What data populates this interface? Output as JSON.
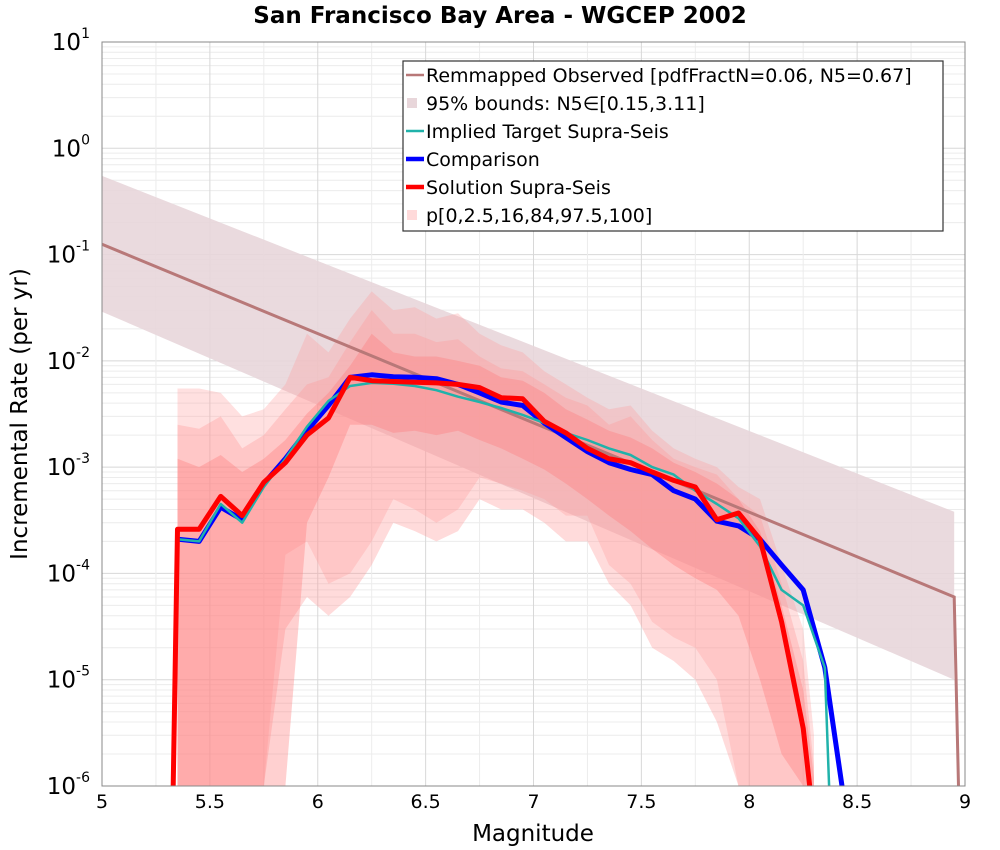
{
  "chart_data": {
    "type": "line",
    "title": "San Francisco Bay Area - WGCEP 2002",
    "xlabel": "Magnitude",
    "ylabel": "Incremental Rate (per yr)",
    "xlim": [
      5,
      9
    ],
    "ylim": [
      1e-06,
      10
    ],
    "yscale": "log",
    "grid": true,
    "legend_position": "top-right",
    "x_ticks": [
      "5",
      "5.5",
      "6",
      "6.5",
      "7",
      "7.5",
      "8",
      "8.5",
      "9"
    ],
    "y_ticks": [
      {
        "base": "10",
        "exp": "1",
        "value": 10
      },
      {
        "base": "10",
        "exp": "0",
        "value": 1
      },
      {
        "base": "10",
        "exp": "-1",
        "value": 0.1
      },
      {
        "base": "10",
        "exp": "-2",
        "value": 0.01
      },
      {
        "base": "10",
        "exp": "-3",
        "value": 0.001
      },
      {
        "base": "10",
        "exp": "-4",
        "value": 0.0001
      },
      {
        "base": "10",
        "exp": "-5",
        "value": 1e-05
      },
      {
        "base": "10",
        "exp": "-6",
        "value": 1e-06
      }
    ],
    "legend": [
      {
        "label": "Remmapped Observed [pdfFractN=0.06, N5=0.67]",
        "kind": "line",
        "color": "#b87878"
      },
      {
        "label": "95% bounds: N5∈[0.15,3.11]",
        "kind": "band",
        "color": "#e8d6da"
      },
      {
        "label": "Implied Target Supra-Seis",
        "kind": "line",
        "color": "#20b2aa"
      },
      {
        "label": "Comparison",
        "kind": "line",
        "color": "#0000ff"
      },
      {
        "label": "Solution Supra-Seis",
        "kind": "line",
        "color": "#ff0000"
      },
      {
        "label": "p[0,2.5,16,84,97.5,100]",
        "kind": "band",
        "color": "#ffdada"
      }
    ],
    "observed": {
      "x": [
        5.0,
        8.95,
        8.97
      ],
      "y": [
        0.125,
        6e-05,
        1e-06
      ]
    },
    "observed_bounds": {
      "x": [
        5.0,
        8.95
      ],
      "upper": [
        0.55,
        0.00038
      ],
      "lower": [
        0.029,
        1e-05
      ]
    },
    "target": {
      "x": [
        5.35,
        5.45,
        5.55,
        5.65,
        5.75,
        5.85,
        5.95,
        6.05,
        6.15,
        6.25,
        6.35,
        6.45,
        6.55,
        6.65,
        6.75,
        6.85,
        6.95,
        7.05,
        7.15,
        7.25,
        7.35,
        7.45,
        7.55,
        7.65,
        7.75,
        7.85,
        7.95,
        8.05,
        8.15,
        8.25,
        8.35,
        8.37
      ],
      "y": [
        0.00021,
        0.0002,
        0.00045,
        0.0003,
        0.00065,
        0.0012,
        0.0024,
        0.0042,
        0.0058,
        0.0062,
        0.0061,
        0.0058,
        0.0053,
        0.0046,
        0.0041,
        0.0036,
        0.0031,
        0.0026,
        0.0021,
        0.0018,
        0.0015,
        0.0013,
        0.001,
        0.00085,
        0.0006,
        0.00045,
        0.00033,
        0.00018,
        7e-05,
        5e-05,
        1.3e-05,
        1e-06
      ]
    },
    "comparison": {
      "x": [
        5.35,
        5.45,
        5.55,
        5.65,
        5.75,
        5.85,
        5.95,
        6.05,
        6.15,
        6.25,
        6.35,
        6.45,
        6.55,
        6.65,
        6.75,
        6.85,
        6.95,
        7.05,
        7.15,
        7.25,
        7.35,
        7.45,
        7.55,
        7.65,
        7.75,
        7.85,
        7.95,
        8.05,
        8.15,
        8.25,
        8.35,
        8.43
      ],
      "y": [
        0.00021,
        0.0002,
        0.00042,
        0.00032,
        0.0007,
        0.0012,
        0.0022,
        0.0038,
        0.007,
        0.0074,
        0.0071,
        0.007,
        0.0068,
        0.006,
        0.005,
        0.0041,
        0.0038,
        0.0026,
        0.0019,
        0.0014,
        0.0011,
        0.00095,
        0.00085,
        0.0006,
        0.0005,
        0.00031,
        0.00028,
        0.00021,
        0.00012,
        7e-05,
        1.3e-05,
        1e-06
      ]
    },
    "solution": {
      "x": [
        5.33,
        5.35,
        5.45,
        5.55,
        5.65,
        5.75,
        5.85,
        5.95,
        6.05,
        6.15,
        6.25,
        6.35,
        6.45,
        6.55,
        6.65,
        6.75,
        6.85,
        6.95,
        7.05,
        7.15,
        7.25,
        7.35,
        7.45,
        7.55,
        7.65,
        7.75,
        7.85,
        7.95,
        8.05,
        8.15,
        8.25,
        8.28
      ],
      "y": [
        1e-06,
        0.00026,
        0.00026,
        0.00053,
        0.00035,
        0.00072,
        0.0011,
        0.002,
        0.0029,
        0.007,
        0.0065,
        0.0064,
        0.0063,
        0.0062,
        0.006,
        0.0056,
        0.0045,
        0.0044,
        0.0027,
        0.0021,
        0.0015,
        0.0012,
        0.0011,
        0.0009,
        0.00075,
        0.00065,
        0.00032,
        0.00037,
        0.00021,
        3.5e-05,
        3.5e-06,
        1e-06
      ]
    },
    "percentile_bands": {
      "x": [
        5.35,
        5.45,
        5.55,
        5.65,
        5.75,
        5.85,
        5.95,
        6.05,
        6.15,
        6.25,
        6.35,
        6.45,
        6.55,
        6.65,
        6.75,
        6.85,
        6.95,
        7.05,
        7.15,
        7.25,
        7.35,
        7.45,
        7.55,
        7.65,
        7.75,
        7.85,
        7.95,
        8.05,
        8.15,
        8.25,
        8.3
      ],
      "outer_upper": [
        0.0055,
        0.0055,
        0.005,
        0.003,
        0.0035,
        0.006,
        0.018,
        0.012,
        0.025,
        0.045,
        0.03,
        0.032,
        0.025,
        0.028,
        0.018,
        0.014,
        0.012,
        0.008,
        0.006,
        0.0045,
        0.0035,
        0.0038,
        0.0022,
        0.0015,
        0.0012,
        0.001,
        0.00065,
        0.0005,
        0.00012,
        3e-05,
        3e-06
      ],
      "outer_lower": [
        1e-06,
        1e-06,
        1e-06,
        1e-06,
        1e-06,
        0.00015,
        0.0002,
        8e-05,
        0.0001,
        0.0002,
        0.0005,
        0.0004,
        0.0003,
        0.0004,
        0.0008,
        0.0007,
        0.0006,
        0.0005,
        0.00035,
        0.00035,
        0.00012,
        8e-05,
        3.5e-05,
        2.5e-05,
        2e-05,
        1e-05,
        1e-06,
        1e-06,
        1e-06,
        1e-06,
        1e-06
      ],
      "mid_upper": [
        0.0025,
        0.0023,
        0.003,
        0.0015,
        0.002,
        0.0035,
        0.006,
        0.007,
        0.015,
        0.03,
        0.018,
        0.018,
        0.015,
        0.016,
        0.011,
        0.0085,
        0.008,
        0.006,
        0.0045,
        0.0038,
        0.0025,
        0.003,
        0.0018,
        0.0012,
        0.001,
        0.00085,
        0.0005,
        0.00035,
        8e-05,
        1.5e-05,
        1.5e-06
      ],
      "mid_lower": [
        1e-06,
        1e-06,
        1e-06,
        1e-06,
        1e-06,
        3e-05,
        6e-05,
        4e-05,
        6e-05,
        0.00012,
        0.0003,
        0.00025,
        0.0002,
        0.00025,
        0.0005,
        0.0004,
        0.0004,
        0.0003,
        0.0002,
        0.0002,
        8e-05,
        5e-05,
        2e-05,
        1.5e-05,
        1e-05,
        4e-06,
        1e-06,
        1e-06,
        1e-06,
        1e-06,
        1e-06
      ],
      "inner_upper": [
        0.0012,
        0.001,
        0.0013,
        0.0009,
        0.0012,
        0.0018,
        0.0032,
        0.005,
        0.009,
        0.018,
        0.012,
        0.011,
        0.011,
        0.01,
        0.009,
        0.007,
        0.0065,
        0.005,
        0.0035,
        0.0028,
        0.0022,
        0.0019,
        0.0015,
        0.0011,
        0.0009,
        0.0007,
        0.0005,
        0.00025,
        5e-05,
        8e-06,
        1.2e-06
      ],
      "inner_lower": [
        1e-06,
        1e-06,
        1e-06,
        1e-06,
        1e-06,
        1e-06,
        0.0003,
        0.0008,
        0.0025,
        0.0025,
        0.0021,
        0.0022,
        0.002,
        0.0022,
        0.0018,
        0.0015,
        0.0012,
        0.00095,
        0.0007,
        0.0005,
        0.00035,
        0.00025,
        0.00017,
        0.00012,
        9e-05,
        7e-05,
        4e-05,
        1e-05,
        2e-06,
        1e-06,
        1e-06
      ]
    }
  }
}
